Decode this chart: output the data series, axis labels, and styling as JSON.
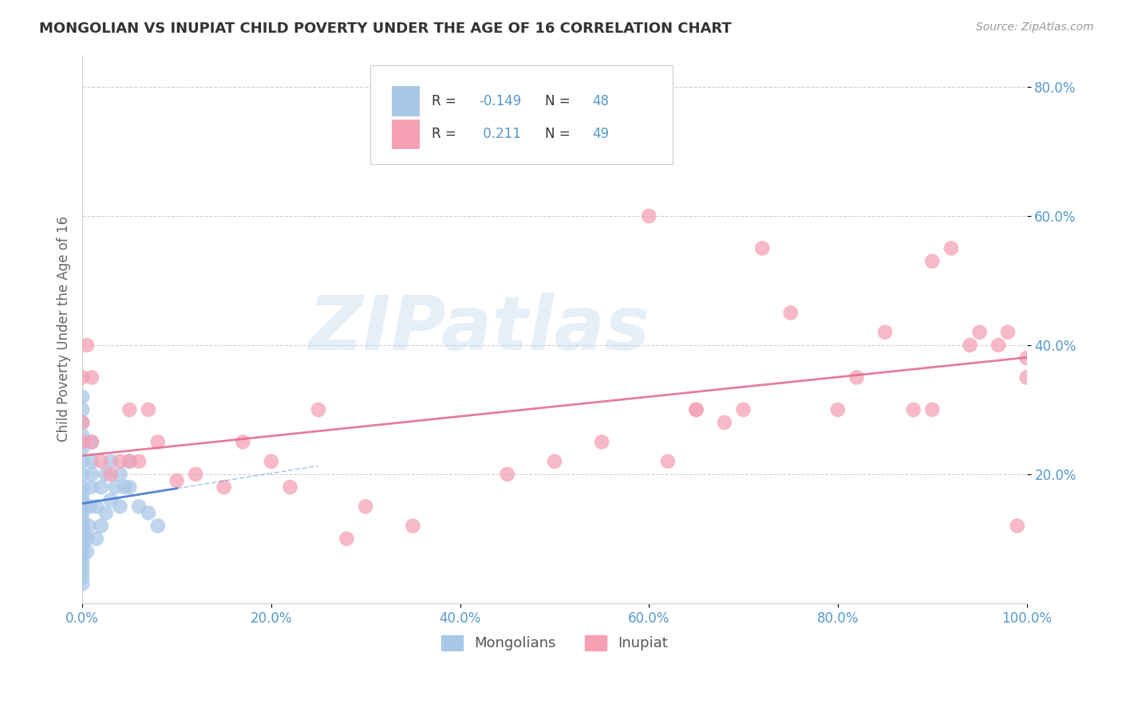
{
  "title": "MONGOLIAN VS INUPIAT CHILD POVERTY UNDER THE AGE OF 16 CORRELATION CHART",
  "source": "Source: ZipAtlas.com",
  "ylabel": "Child Poverty Under the Age of 16",
  "xlim": [
    0.0,
    1.0
  ],
  "ylim": [
    0.0,
    0.85
  ],
  "xtick_vals": [
    0.0,
    0.2,
    0.4,
    0.6,
    0.8,
    1.0
  ],
  "xtick_labels": [
    "0.0%",
    "20.0%",
    "40.0%",
    "60.0%",
    "80.0%",
    "100.0%"
  ],
  "ytick_vals": [
    0.2,
    0.4,
    0.6,
    0.8
  ],
  "ytick_labels": [
    "20.0%",
    "40.0%",
    "60.0%",
    "80.0%"
  ],
  "mongolian_color": "#a8c8e8",
  "inupiat_color": "#f5a0b5",
  "mongolian_line_color": "#4477cc",
  "inupiat_line_color": "#e06888",
  "R_mongolian": -0.149,
  "N_mongolian": 48,
  "R_inupiat": 0.211,
  "N_inupiat": 49,
  "mongolian_x": [
    0.0,
    0.0,
    0.0,
    0.0,
    0.0,
    0.0,
    0.0,
    0.0,
    0.0,
    0.0,
    0.0,
    0.0,
    0.0,
    0.0,
    0.0,
    0.0,
    0.0,
    0.0,
    0.0,
    0.0,
    0.0,
    0.0,
    0.0,
    0.005,
    0.005,
    0.007,
    0.008,
    0.009,
    0.01,
    0.01,
    0.01,
    0.015,
    0.015,
    0.02,
    0.02,
    0.025,
    0.025,
    0.03,
    0.03,
    0.035,
    0.04,
    0.04,
    0.045,
    0.05,
    0.05,
    0.06,
    0.07,
    0.08
  ],
  "mongolian_y": [
    0.03,
    0.04,
    0.05,
    0.06,
    0.07,
    0.08,
    0.09,
    0.1,
    0.11,
    0.12,
    0.13,
    0.14,
    0.15,
    0.16,
    0.17,
    0.18,
    0.2,
    0.22,
    0.24,
    0.26,
    0.28,
    0.3,
    0.32,
    0.08,
    0.1,
    0.12,
    0.15,
    0.18,
    0.2,
    0.22,
    0.25,
    0.1,
    0.15,
    0.12,
    0.18,
    0.14,
    0.2,
    0.16,
    0.22,
    0.18,
    0.15,
    0.2,
    0.18,
    0.22,
    0.18,
    0.15,
    0.14,
    0.12
  ],
  "inupiat_x": [
    0.0,
    0.0,
    0.0,
    0.005,
    0.01,
    0.01,
    0.02,
    0.03,
    0.04,
    0.05,
    0.05,
    0.06,
    0.07,
    0.08,
    0.1,
    0.12,
    0.15,
    0.17,
    0.2,
    0.22,
    0.25,
    0.28,
    0.3,
    0.35,
    0.45,
    0.5,
    0.55,
    0.6,
    0.62,
    0.65,
    0.65,
    0.68,
    0.7,
    0.72,
    0.75,
    0.8,
    0.82,
    0.85,
    0.88,
    0.9,
    0.9,
    0.92,
    0.94,
    0.95,
    0.97,
    0.98,
    0.99,
    1.0,
    1.0
  ],
  "inupiat_y": [
    0.35,
    0.28,
    0.25,
    0.4,
    0.35,
    0.25,
    0.22,
    0.2,
    0.22,
    0.3,
    0.22,
    0.22,
    0.3,
    0.25,
    0.19,
    0.2,
    0.18,
    0.25,
    0.22,
    0.18,
    0.3,
    0.1,
    0.15,
    0.12,
    0.2,
    0.22,
    0.25,
    0.6,
    0.22,
    0.3,
    0.3,
    0.28,
    0.3,
    0.55,
    0.45,
    0.3,
    0.35,
    0.42,
    0.3,
    0.3,
    0.53,
    0.55,
    0.4,
    0.42,
    0.4,
    0.42,
    0.12,
    0.38,
    0.35
  ],
  "watermark_text": "ZIPatlas",
  "watermark_color": "#c0d8ee",
  "background_color": "#ffffff",
  "grid_color": "#cccccc",
  "title_color": "#333333",
  "axis_label_color": "#666666",
  "tick_color": "#5599cc",
  "source_color": "#999999",
  "legend_edge_color": "#cccccc",
  "legend_bg": "#ffffff"
}
